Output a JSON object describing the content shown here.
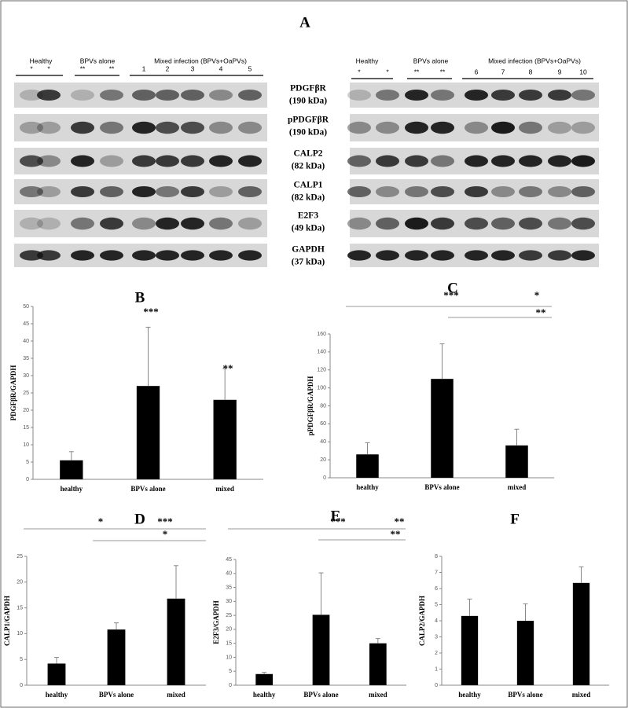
{
  "figure": {
    "panel_label": "A",
    "blot_left": {
      "groups": [
        "Healthy",
        "BPVs alone",
        "Mixed infection (BPVs+OaPVs)"
      ],
      "lanes": [
        "*",
        "*",
        "**",
        "**",
        "1",
        "2",
        "3",
        "4",
        "5"
      ]
    },
    "blot_right": {
      "groups": [
        "Healthy",
        "BPVs alone",
        "Mixed infection (BPVs+OaPVs)"
      ],
      "lanes": [
        "*",
        "*",
        "**",
        "**",
        "6",
        "7",
        "8",
        "9",
        "10"
      ]
    },
    "proteins": [
      {
        "name": "PDGFβR",
        "size": "(190 kDa)"
      },
      {
        "name": "pPDGFβR",
        "size": "(190 kDa)"
      },
      {
        "name": "CALP2",
        "size": "(82 kDa)"
      },
      {
        "name": "CALP1",
        "size": "(82 kDa)"
      },
      {
        "name": "E2F3",
        "size": "(49 kDa)"
      },
      {
        "name": "GAPDH",
        "size": "(37 kDa)"
      }
    ]
  },
  "chart_data": [
    {
      "type": "bar",
      "title": "B",
      "ylabel": "PDGFβR/GAPDH",
      "categories": [
        "healthy",
        "BPVs alone",
        "mixed"
      ],
      "values": [
        5.5,
        27,
        23
      ],
      "errors": [
        2.5,
        17,
        9
      ],
      "color": "#000000",
      "ylim": [
        0,
        50
      ],
      "yticks": [
        0,
        5,
        10,
        15,
        20,
        25,
        30,
        35,
        40,
        45,
        50
      ],
      "annotations": [
        "***",
        "**"
      ]
    },
    {
      "type": "bar",
      "title": "C",
      "ylabel": "pPDGFβR/GAPDH",
      "categories": [
        "healthy",
        "BPVs alone",
        "mixed"
      ],
      "values": [
        26,
        110,
        36
      ],
      "errors": [
        13,
        39,
        18
      ],
      "color": "#000000",
      "ylim": [
        0,
        160
      ],
      "yticks": [
        0,
        20,
        40,
        60,
        80,
        100,
        120,
        140,
        160
      ],
      "annotations": [
        "***",
        "*",
        "**"
      ]
    },
    {
      "type": "bar",
      "title": "D",
      "ylabel": "CALP1/GAPDH",
      "categories": [
        "healthy",
        "BPVs alone",
        "mixed"
      ],
      "values": [
        4.2,
        10.8,
        16.8
      ],
      "errors": [
        1.2,
        1.3,
        6.4
      ],
      "color": "#000000",
      "ylim": [
        0,
        25
      ],
      "yticks": [
        0,
        5,
        10,
        15,
        20,
        25
      ],
      "annotations": [
        "*",
        "***",
        "*"
      ]
    },
    {
      "type": "bar",
      "title": "E",
      "ylabel": "E2F3/GAPDH",
      "categories": [
        "healthy",
        "BPVs alone",
        "mixed"
      ],
      "values": [
        4,
        25.2,
        15
      ],
      "errors": [
        0.6,
        15,
        1.7
      ],
      "color": "#000000",
      "ylim": [
        0,
        45
      ],
      "yticks": [
        0,
        5,
        10,
        15,
        20,
        25,
        30,
        35,
        40,
        45
      ],
      "annotations": [
        "***",
        "**",
        "**"
      ]
    },
    {
      "type": "bar",
      "title": "F",
      "ylabel": "CALP2/GAPDH",
      "categories": [
        "healthy",
        "BPVs alone",
        "mixed"
      ],
      "values": [
        4.3,
        4.0,
        6.35
      ],
      "errors": [
        1.05,
        1.05,
        1.0
      ],
      "color": "#000000",
      "ylim": [
        0,
        8
      ],
      "yticks": [
        0,
        1,
        2,
        3,
        4,
        5,
        6,
        7,
        8
      ]
    }
  ]
}
